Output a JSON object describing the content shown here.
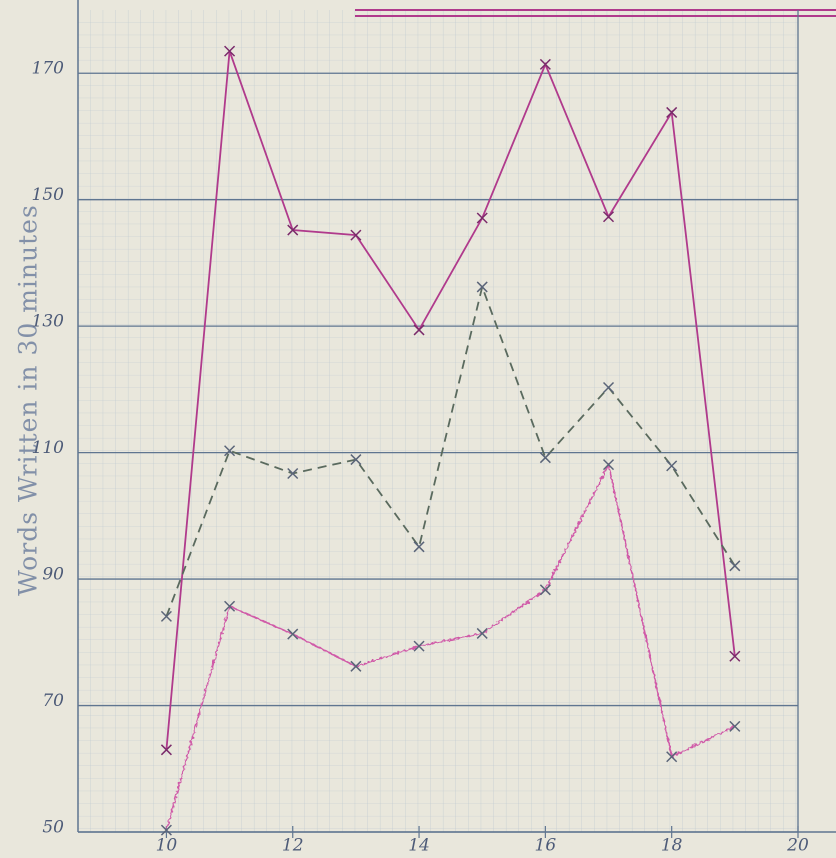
{
  "chart_data": {
    "type": "line",
    "y_label": "Words Written in 30 minutes",
    "x": [
      10,
      11,
      12,
      13,
      14,
      15,
      16,
      17,
      18,
      19
    ],
    "series": [
      {
        "color": "#b03a8c",
        "line_style": "solid",
        "values": [
          63,
          173.5,
          145.2,
          144.4,
          129.4,
          147.1,
          171.4,
          147.3,
          163.8,
          77.8
        ]
      },
      {
        "color": "#5a6a5e",
        "line_style": "dashed",
        "values": [
          84.1,
          110.3,
          106.7,
          108.9,
          95.1,
          136.2,
          109.2,
          120.3,
          107.9,
          92.1
        ]
      },
      {
        "color": "#d05aa8",
        "line_style": "wavy",
        "values": [
          50.3,
          85.7,
          81.3,
          76.2,
          79.4,
          81.4,
          88.3,
          108.1,
          61.9,
          66.7
        ]
      }
    ],
    "xlim": [
      8.6,
      20
    ],
    "xticks": [
      10,
      12,
      14,
      16,
      18,
      20
    ],
    "ylim": [
      50,
      180
    ],
    "yticks": [
      50,
      70,
      90,
      110,
      130,
      150,
      170
    ],
    "grid": true
  }
}
